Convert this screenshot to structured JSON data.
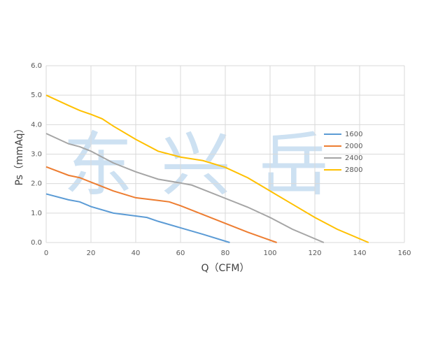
{
  "chart_data": {
    "type": "line",
    "xlabel": "Q（CFM）",
    "ylabel": "Ps（mmAq）",
    "watermark": "东兴岳",
    "xlim": [
      0,
      160
    ],
    "xticks": [
      0,
      20,
      40,
      60,
      80,
      100,
      120,
      140,
      160
    ],
    "ylim": [
      0,
      6
    ],
    "yticks": [
      {
        "value": 0,
        "label": "0.0"
      },
      {
        "value": 1,
        "label": "1.0"
      },
      {
        "value": 2,
        "label": "2.0"
      },
      {
        "value": 3,
        "label": "3.0"
      },
      {
        "value": 4,
        "label": "4.0"
      },
      {
        "value": 5,
        "label": "5.0"
      },
      {
        "value": 6,
        "label": "6.0"
      }
    ],
    "grid": true,
    "legend": "right",
    "series": [
      {
        "name": "1600",
        "color": "#5b9bd5",
        "x": [
          0,
          10,
          15,
          20,
          30,
          40,
          45,
          50,
          60,
          70,
          82
        ],
        "values": [
          1.65,
          1.45,
          1.38,
          1.22,
          1.0,
          0.9,
          0.85,
          0.72,
          0.5,
          0.28,
          0.0
        ]
      },
      {
        "name": "2000",
        "color": "#ed7d31",
        "x": [
          0,
          10,
          15,
          20,
          30,
          40,
          50,
          55,
          60,
          70,
          80,
          90,
          103
        ],
        "values": [
          2.57,
          2.28,
          2.2,
          2.05,
          1.75,
          1.52,
          1.43,
          1.38,
          1.25,
          0.95,
          0.65,
          0.35,
          0.0
        ]
      },
      {
        "name": "2400",
        "color": "#a5a5a5",
        "x": [
          0,
          10,
          15,
          20,
          25,
          30,
          40,
          50,
          60,
          65,
          70,
          80,
          90,
          100,
          110,
          124
        ],
        "values": [
          3.7,
          3.35,
          3.25,
          3.1,
          2.9,
          2.7,
          2.4,
          2.15,
          2.02,
          1.95,
          1.8,
          1.5,
          1.2,
          0.85,
          0.45,
          0.0
        ]
      },
      {
        "name": "2800",
        "color": "#ffc000",
        "x": [
          0,
          10,
          15,
          20,
          25,
          30,
          40,
          50,
          60,
          70,
          80,
          90,
          100,
          110,
          120,
          130,
          144
        ],
        "values": [
          5.0,
          4.65,
          4.48,
          4.35,
          4.2,
          3.95,
          3.5,
          3.1,
          2.9,
          2.78,
          2.55,
          2.2,
          1.75,
          1.3,
          0.85,
          0.45,
          0.0
        ]
      }
    ]
  }
}
